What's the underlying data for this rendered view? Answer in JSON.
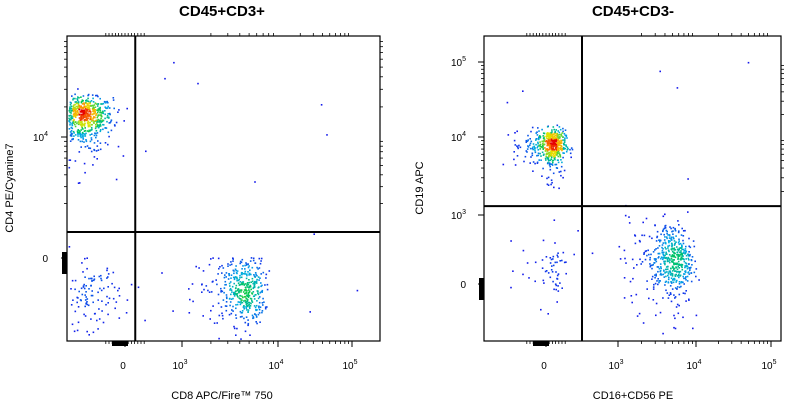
{
  "chart_data": [
    {
      "type": "scatter",
      "title": "CD45+CD3+",
      "xlabel": "CD8 APC/Fire™ 750",
      "ylabel": "CD4 PE/Cyanine7",
      "x_ticks": [
        {
          "label": "0",
          "value": 0
        },
        {
          "label": "10",
          "sup": "3",
          "value": 1000
        },
        {
          "label": "10",
          "sup": "4",
          "value": 10000
        },
        {
          "label": "10",
          "sup": "5",
          "value": 100000
        }
      ],
      "y_ticks": [
        {
          "label": "0",
          "value": 0
        },
        {
          "label": "10",
          "sup": "4",
          "value": 10000
        }
      ],
      "gate": {
        "x": 180,
        "y": 1600
      },
      "populations": [
        {
          "x_center": -260,
          "x_sd": 90,
          "y_center": 16000,
          "y_sd": 4500,
          "count": 650
        },
        {
          "x_center": 4300,
          "x_sd": 1400,
          "y_center": -270,
          "y_sd": 140,
          "count": 430
        },
        {
          "x_center": -220,
          "x_sd": 90,
          "y_center": -300,
          "y_sd": 140,
          "count": 110
        }
      ],
      "grid": false,
      "colormap": "pseudocolor density (blue-green-yellow-red)"
    },
    {
      "type": "scatter",
      "title": "CD45+CD3-",
      "xlabel": "CD16+CD56 PE",
      "ylabel": "CD19 APC",
      "x_ticks": [
        {
          "label": "0",
          "value": 0
        },
        {
          "label": "10",
          "sup": "3",
          "value": 1000
        },
        {
          "label": "10",
          "sup": "4",
          "value": 10000
        },
        {
          "label": "10",
          "sup": "5",
          "value": 100000
        }
      ],
      "y_ticks": [
        {
          "label": "0",
          "value": 0
        },
        {
          "label": "10",
          "sup": "3",
          "value": 1000
        },
        {
          "label": "10",
          "sup": "4",
          "value": 10000
        },
        {
          "label": "10",
          "sup": "5",
          "value": 100000
        }
      ],
      "gate": {
        "x": 500,
        "y": 1300
      },
      "populations": [
        {
          "x_center": 60,
          "x_sd": 100,
          "y_center": 8000,
          "y_sd": 2300,
          "count": 520
        },
        {
          "x_center": 4800,
          "x_sd": 1800,
          "y_center": 350,
          "y_sd": 280,
          "count": 520
        },
        {
          "x_center": 60,
          "x_sd": 120,
          "y_center": 220,
          "y_sd": 200,
          "count": 55
        }
      ],
      "grid": false,
      "colormap": "pseudocolor density (blue-green-yellow-red)"
    }
  ]
}
